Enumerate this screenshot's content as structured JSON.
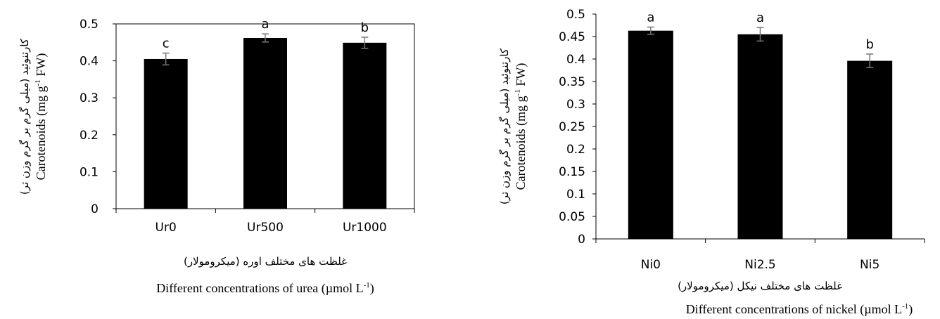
{
  "chart_data": [
    {
      "type": "bar",
      "categories": [
        "Ur0",
        "Ur500",
        "Ur1000"
      ],
      "values": [
        0.405,
        0.462,
        0.449
      ],
      "errors": [
        0.016,
        0.011,
        0.015
      ],
      "letters": [
        "c",
        "a",
        "b"
      ],
      "ylim": [
        0,
        0.5
      ],
      "yticks": [
        "0",
        "0.1",
        "0.2",
        "0.3",
        "0.4",
        "0.5"
      ],
      "ylabel_fa": "کارتنوئید (میلی گرم بر گرم وزن تر)",
      "ylabel_en": "Carotenoids (mg g",
      "ylabel_en_sup": "-1",
      "ylabel_en_tail": " FW)",
      "xlabel_fa": "غلظت های مختلف اوره (میکرومولار)",
      "xlabel_en": "Different concentrations of urea (µmol L",
      "xlabel_en_sup": "-1",
      "xlabel_en_tail": ")",
      "bar_color": "#000000",
      "grid": false
    },
    {
      "type": "bar",
      "categories": [
        "Ni0",
        "Ni2.5",
        "Ni5"
      ],
      "values": [
        0.463,
        0.455,
        0.396
      ],
      "errors": [
        0.008,
        0.015,
        0.015
      ],
      "letters": [
        "a",
        "a",
        "b"
      ],
      "ylim": [
        0,
        0.5
      ],
      "yticks": [
        "0",
        "0.05",
        "0.1",
        "0.15",
        "0.2",
        "0.25",
        "0.3",
        "0.35",
        "0.4",
        "0.45",
        "0.5"
      ],
      "ylabel_fa": "کارتنوئید (میلی گرم بر گرم وزن تر)",
      "ylabel_en": "Carotenoids (mg g",
      "ylabel_en_sup": "-1",
      "ylabel_en_tail": " FW)",
      "xlabel_fa": "غلظت های مختلف نیکل (میکرومولار)",
      "xlabel_en": "Different concentrations of nickel (µmol L",
      "xlabel_en_sup": "-1",
      "xlabel_en_tail": ")",
      "bar_color": "#000000",
      "grid": false
    }
  ]
}
